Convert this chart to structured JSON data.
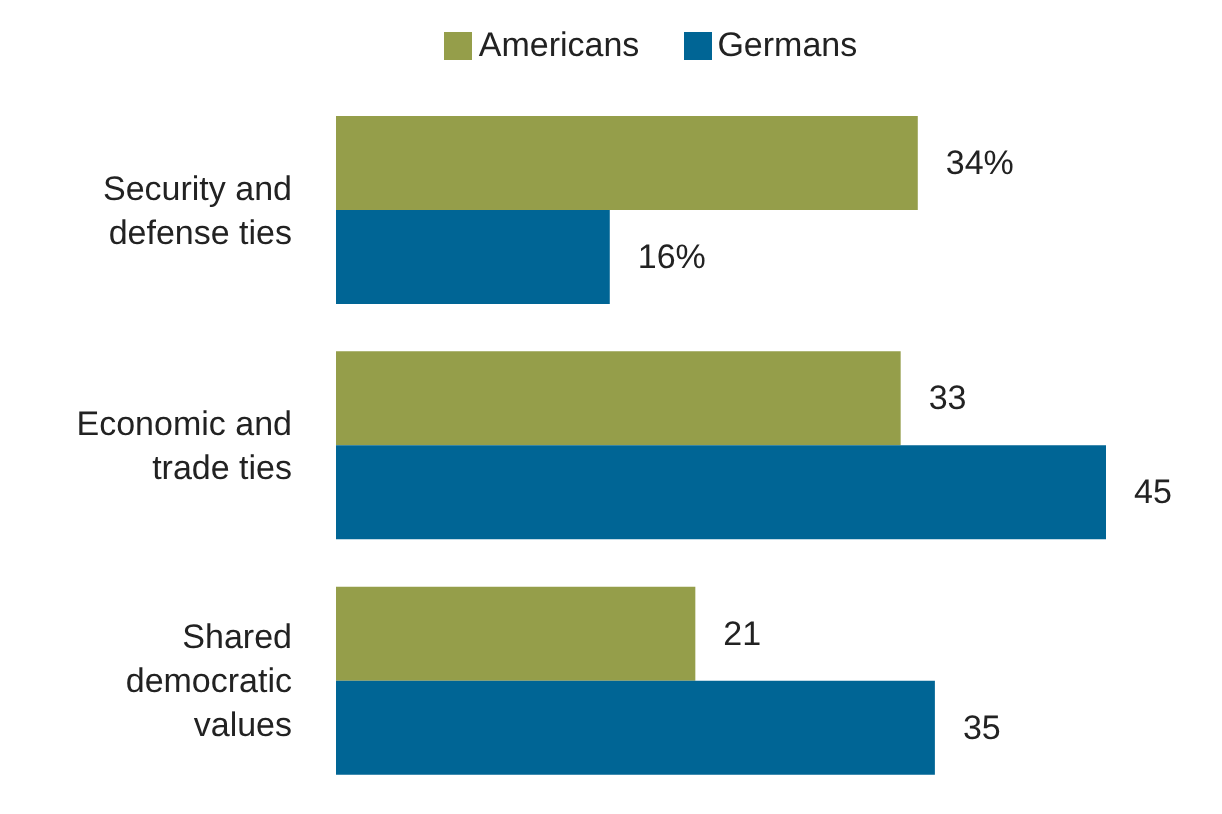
{
  "chart_data": {
    "type": "bar",
    "orientation": "horizontal",
    "categories": [
      "Security and defense ties",
      "Economic and trade ties",
      "Shared democratic values"
    ],
    "series": [
      {
        "name": "Americans",
        "color": "#959e4a",
        "values": [
          34,
          33,
          21
        ],
        "value_labels": [
          "34%",
          "33",
          "21"
        ]
      },
      {
        "name": "Germans",
        "color": "#006595",
        "values": [
          16,
          45,
          35
        ],
        "value_labels": [
          "16%",
          "45",
          "35"
        ]
      }
    ],
    "legend": "top",
    "grid": false
  }
}
